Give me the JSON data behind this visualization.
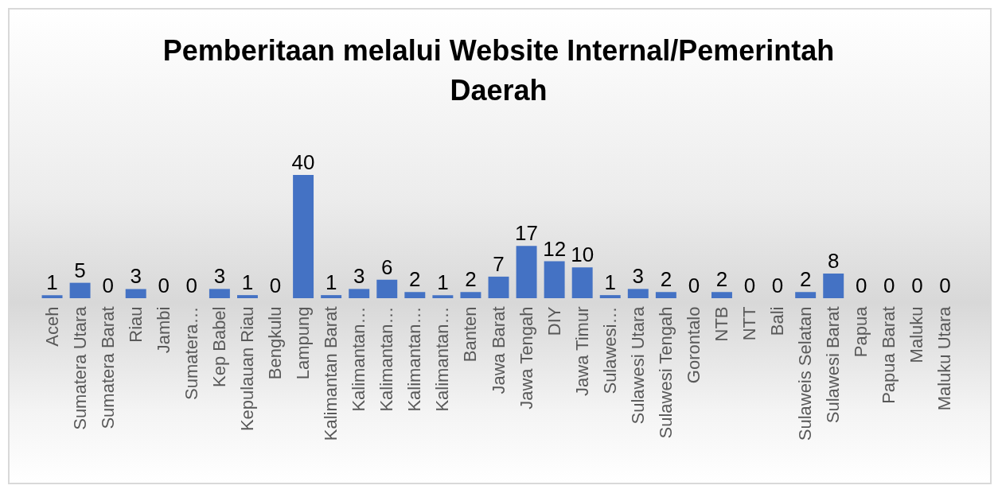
{
  "chart_data": {
    "type": "bar",
    "title": "Pemberitaan melalui Website Internal/Pemerintah Daerah",
    "categories": [
      "Aceh",
      "Sumatera Utara",
      "Sumatera  Barat",
      "Riau",
      "Jambi",
      "Sumatera…",
      "Kep Babel",
      "Kepulauan Riau",
      "Bengkulu",
      "Lampung",
      "Kalimantan Barat",
      "Kalimantan…",
      "Kalimantan…",
      "Kalimantan…",
      "Kalimantan…",
      "Banten",
      "Jawa Barat",
      "Jawa Tengah",
      "DIY",
      "Jawa Timur",
      "Sulawesi…",
      "Sulawesi Utara",
      "Sulawesi Tengah",
      "Gorontalo",
      "NTB",
      "NTT",
      "Bali",
      "Sulaweis Selatan",
      "Sulawesi Barat",
      "Papua",
      "Papua Barat",
      "Maluku",
      "Maluku Utara"
    ],
    "values": [
      1,
      5,
      0,
      3,
      0,
      0,
      3,
      1,
      0,
      40,
      1,
      3,
      6,
      2,
      1,
      2,
      7,
      17,
      12,
      10,
      1,
      3,
      2,
      0,
      2,
      0,
      0,
      2,
      8,
      0,
      0,
      0,
      0
    ],
    "color": "#4472c4",
    "data_labels": true
  }
}
